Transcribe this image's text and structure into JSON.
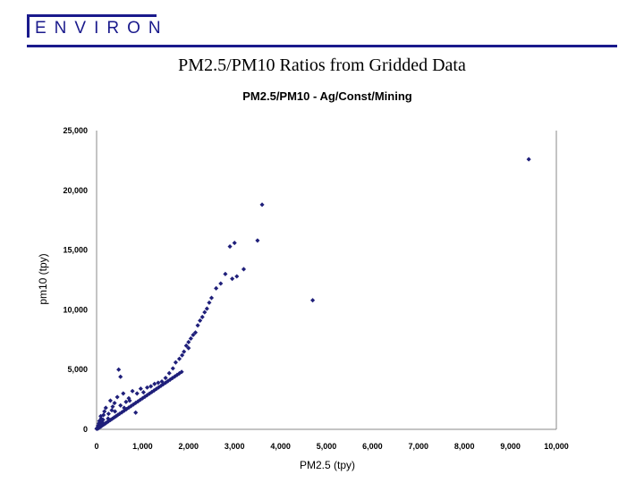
{
  "header": {
    "logo_text": "ENVIRON",
    "slide_title": "PM2.5/PM10 Ratios from Gridded Data"
  },
  "colors": {
    "brand": "#1a1a8c",
    "points": "#1f1f7a"
  },
  "chart_data": {
    "type": "scatter",
    "title": "PM2.5/PM10 - Ag/Const/Mining",
    "xlabel": "PM2.5 (tpy)",
    "ylabel": "pm10 (tpy)",
    "xlim": [
      0,
      10000
    ],
    "ylim": [
      0,
      25000
    ],
    "x_ticks": [
      "0",
      "1,000",
      "2,000",
      "3,000",
      "4,000",
      "5,000",
      "6,000",
      "7,000",
      "8,000",
      "9,000",
      "10,000"
    ],
    "y_ticks": [
      "0",
      "5,000",
      "10,000",
      "15,000",
      "20,000",
      "25,000"
    ],
    "grid": false,
    "series": [
      {
        "points": [
          [
            20,
            50
          ],
          [
            40,
            100
          ],
          [
            60,
            160
          ],
          [
            80,
            210
          ],
          [
            100,
            260
          ],
          [
            120,
            320
          ],
          [
            150,
            390
          ],
          [
            180,
            470
          ],
          [
            200,
            520
          ],
          [
            230,
            600
          ],
          [
            260,
            680
          ],
          [
            300,
            780
          ],
          [
            340,
            880
          ],
          [
            380,
            990
          ],
          [
            420,
            1090
          ],
          [
            460,
            1200
          ],
          [
            500,
            1300
          ],
          [
            550,
            1430
          ],
          [
            600,
            1560
          ],
          [
            650,
            1690
          ],
          [
            700,
            1820
          ],
          [
            750,
            1950
          ],
          [
            800,
            2080
          ],
          [
            850,
            2210
          ],
          [
            900,
            2340
          ],
          [
            950,
            2470
          ],
          [
            1000,
            2600
          ],
          [
            1050,
            2730
          ],
          [
            1100,
            2860
          ],
          [
            1150,
            2990
          ],
          [
            1200,
            3120
          ],
          [
            1250,
            3250
          ],
          [
            1300,
            3380
          ],
          [
            1350,
            3510
          ],
          [
            1400,
            3640
          ],
          [
            1450,
            3770
          ],
          [
            1500,
            3900
          ],
          [
            1550,
            4030
          ],
          [
            1600,
            4160
          ],
          [
            1650,
            4290
          ],
          [
            1700,
            4420
          ],
          [
            1750,
            4550
          ],
          [
            1800,
            4680
          ],
          [
            1850,
            4810
          ],
          [
            1900,
            6500
          ],
          [
            1950,
            7000
          ],
          [
            2000,
            7300
          ],
          [
            2050,
            7600
          ],
          [
            2100,
            7900
          ],
          [
            2200,
            8700
          ],
          [
            2300,
            9400
          ],
          [
            2400,
            10100
          ],
          [
            2450,
            10600
          ],
          [
            2500,
            11000
          ],
          [
            2600,
            11800
          ],
          [
            2700,
            12200
          ],
          [
            2800,
            13000
          ],
          [
            2900,
            15300
          ],
          [
            3000,
            15600
          ],
          [
            3200,
            13400
          ],
          [
            3500,
            15800
          ],
          [
            3600,
            18800
          ],
          [
            3050,
            12800
          ],
          [
            2950,
            12600
          ],
          [
            4700,
            10800
          ],
          [
            9400,
            22600
          ],
          [
            480,
            5000
          ],
          [
            520,
            4400
          ],
          [
            300,
            2400
          ],
          [
            200,
            1800
          ],
          [
            150,
            1200
          ],
          [
            100,
            900
          ],
          [
            350,
            1900
          ],
          [
            450,
            2700
          ],
          [
            600,
            1800
          ],
          [
            850,
            1400
          ],
          [
            700,
            2600
          ],
          [
            400,
            1500
          ],
          [
            250,
            900
          ],
          [
            120,
            600
          ],
          [
            80,
            400
          ],
          [
            60,
            700
          ],
          [
            30,
            300
          ],
          [
            10,
            100
          ],
          [
            0,
            50
          ],
          [
            50,
            500
          ],
          [
            90,
            1100
          ],
          [
            140,
            800
          ],
          [
            170,
            1500
          ],
          [
            260,
            1300
          ],
          [
            330,
            1600
          ],
          [
            390,
            2200
          ],
          [
            520,
            2000
          ],
          [
            580,
            3000
          ],
          [
            640,
            2300
          ],
          [
            720,
            2400
          ],
          [
            780,
            3200
          ],
          [
            880,
            3000
          ],
          [
            960,
            3400
          ],
          [
            1020,
            3100
          ],
          [
            1100,
            3500
          ],
          [
            1180,
            3600
          ],
          [
            1260,
            3800
          ],
          [
            1340,
            3900
          ],
          [
            1420,
            4000
          ],
          [
            1500,
            4300
          ],
          [
            1580,
            4700
          ],
          [
            1660,
            5100
          ],
          [
            1720,
            5600
          ],
          [
            1800,
            5900
          ],
          [
            1860,
            6200
          ],
          [
            2000,
            6800
          ],
          [
            2150,
            8100
          ],
          [
            2250,
            9100
          ],
          [
            2350,
            9800
          ]
        ]
      }
    ]
  }
}
